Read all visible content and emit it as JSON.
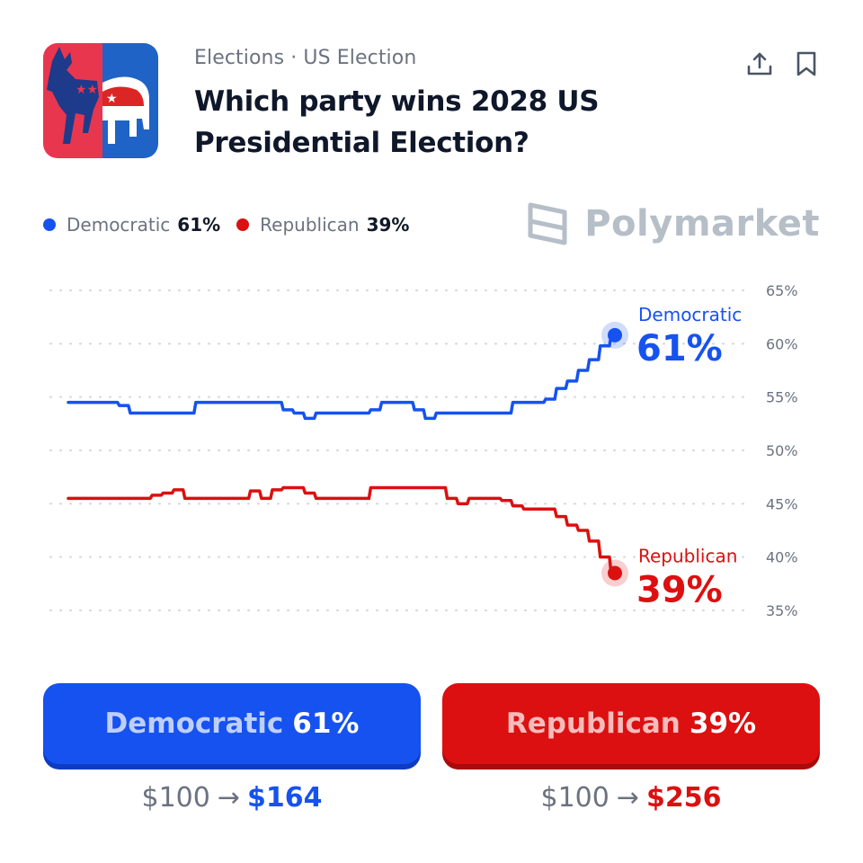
{
  "header": {
    "breadcrumb": "Elections · US Election",
    "title": "Which party wins 2028 US Presidential Election?",
    "share_icon": "share-upload-icon",
    "bookmark_icon": "bookmark-icon"
  },
  "brand": {
    "name": "Polymarket",
    "color": "#b6bec8"
  },
  "legend": {
    "dem": {
      "name": "Democratic",
      "value": "61%",
      "color": "#1652f0"
    },
    "rep": {
      "name": "Republican",
      "value": "39%",
      "color": "#dc1010"
    }
  },
  "chart_data": {
    "type": "line",
    "title": "",
    "xlabel": "",
    "ylabel": "",
    "ylim": [
      35,
      65
    ],
    "yticks": [
      65,
      60,
      55,
      50,
      45,
      40,
      35
    ],
    "ytick_labels": [
      "65%",
      "60%",
      "55%",
      "50%",
      "45%",
      "40%",
      "35%"
    ],
    "grid": true,
    "x": [
      0,
      2,
      4,
      6,
      8,
      10,
      12,
      14,
      16,
      18,
      20,
      22,
      24,
      26,
      28,
      30,
      32,
      34,
      36,
      38,
      40,
      42,
      44,
      46,
      48,
      50,
      52,
      54,
      56,
      58,
      60,
      62,
      64,
      66,
      68,
      70,
      72,
      74,
      76,
      78,
      80,
      82,
      84,
      86,
      88,
      90,
      92,
      94,
      96,
      98,
      100
    ],
    "series": [
      {
        "name": "Democratic",
        "color": "#1652f0",
        "end_label": "61%",
        "values": [
          54.5,
          54.5,
          54.5,
          54.5,
          54.5,
          54.2,
          53.5,
          53.5,
          53.5,
          53.5,
          53.5,
          53.5,
          54.5,
          54.5,
          54.5,
          54.5,
          54.5,
          54.5,
          54.5,
          54.5,
          53.8,
          53.5,
          53,
          53.5,
          53.5,
          53.5,
          53.5,
          53.5,
          53.8,
          54.5,
          54.5,
          54.5,
          53.8,
          53,
          53.5,
          53.5,
          53.5,
          53.5,
          53.5,
          53.5,
          53.5,
          54.5,
          54.5,
          54.5,
          54.8,
          55.8,
          56.5,
          57.5,
          58.5,
          59.8,
          60.8
        ]
      },
      {
        "name": "Republican",
        "color": "#dc1010",
        "end_label": "39%",
        "values": [
          45.5,
          45.5,
          45.5,
          45.5,
          45.5,
          45.5,
          45.5,
          45.5,
          45.8,
          46,
          46.3,
          45.5,
          45.5,
          45.5,
          45.5,
          45.5,
          45.5,
          46.2,
          45.5,
          46.3,
          46.5,
          46.5,
          46,
          45.5,
          45.5,
          45.5,
          45.5,
          45.5,
          46.5,
          46.5,
          46.5,
          46.5,
          46.5,
          46.5,
          46.5,
          45.5,
          45,
          45.5,
          45.5,
          45.5,
          45.3,
          44.8,
          44.5,
          44.5,
          44.5,
          43.8,
          43,
          42.5,
          41.5,
          40,
          38.5
        ]
      }
    ]
  },
  "buttons": {
    "dem": {
      "name": "Democratic",
      "pct": "61%"
    },
    "rep": {
      "name": "Republican",
      "pct": "39%"
    }
  },
  "payouts": {
    "dem": {
      "stake": "$100",
      "arrow": "→",
      "win": "$164"
    },
    "rep": {
      "stake": "$100",
      "arrow": "→",
      "win": "$256"
    }
  }
}
